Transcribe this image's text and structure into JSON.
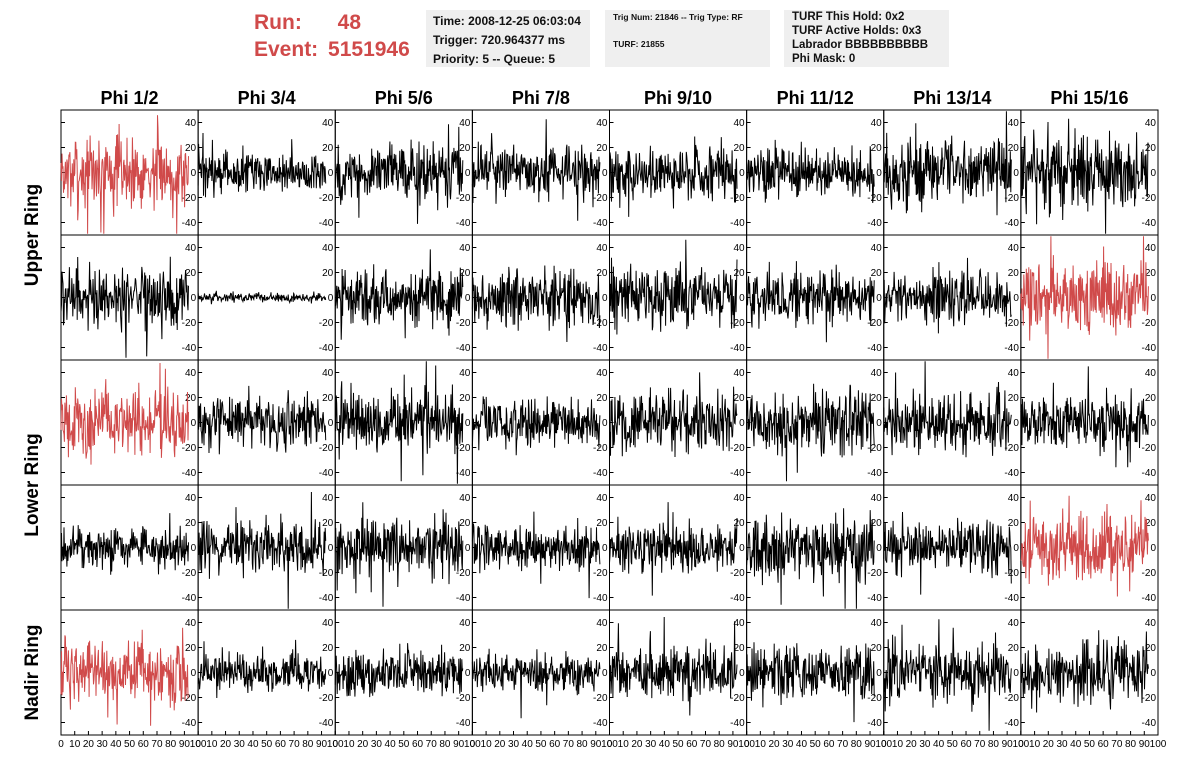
{
  "header": {
    "run_label": "Run:",
    "run_value": "48",
    "event_label": "Event:",
    "event_value": "5151946",
    "time": "Time: 2008-12-25 06:03:04",
    "trigger": "Trigger: 720.964377 ms",
    "priority": "Priority: 5 -- Queue: 5",
    "trig_num": "Trig Num: 21846 -- Trig Type: RF",
    "turf": "TURF: 21855",
    "turf_this_hold": "TURF This Hold: 0x2",
    "turf_active_holds": "TURF Active Holds: 0x3",
    "labrador": "Labrador BBBBBBBBBB",
    "phi_mask": "Phi Mask: 0"
  },
  "colors": {
    "highlight": "#d04a4a",
    "trace": "#000000",
    "info_bg": "#efefef"
  },
  "chart_data": {
    "type": "line",
    "columns": [
      "Phi 1/2",
      "Phi 3/4",
      "Phi 5/6",
      "Phi 7/8",
      "Phi 9/10",
      "Phi 11/12",
      "Phi 13/14",
      "Phi 15/16"
    ],
    "ring_labels": [
      {
        "label": "Upper Ring",
        "rows": [
          0,
          1
        ]
      },
      {
        "label": "Lower Ring",
        "rows": [
          2,
          3
        ]
      },
      {
        "label": "Nadir Ring",
        "rows": [
          4
        ]
      }
    ],
    "xlim": [
      0,
      100
    ],
    "ylim": [
      -50,
      50
    ],
    "x_ticks": [
      0,
      10,
      20,
      30,
      40,
      50,
      60,
      70,
      80,
      90,
      100
    ],
    "y_ticks": [
      -40,
      -20,
      0,
      20,
      40
    ],
    "trace_x_range": [
      0,
      93
    ],
    "panels": [
      [
        {
          "amp": 18,
          "hl": true
        },
        {
          "amp": 10,
          "hl": false
        },
        {
          "amp": 14,
          "hl": false
        },
        {
          "amp": 12,
          "hl": false
        },
        {
          "amp": 14,
          "hl": false
        },
        {
          "amp": 12,
          "hl": false
        },
        {
          "amp": 16,
          "hl": false
        },
        {
          "amp": 18,
          "hl": false
        }
      ],
      [
        {
          "amp": 15,
          "hl": false
        },
        {
          "amp": 2,
          "hl": false
        },
        {
          "amp": 14,
          "hl": false
        },
        {
          "amp": 14,
          "hl": false
        },
        {
          "amp": 14,
          "hl": false
        },
        {
          "amp": 13,
          "hl": false
        },
        {
          "amp": 13,
          "hl": false
        },
        {
          "amp": 17,
          "hl": true
        }
      ],
      [
        {
          "amp": 16,
          "hl": true
        },
        {
          "amp": 13,
          "hl": false
        },
        {
          "amp": 15,
          "hl": false
        },
        {
          "amp": 12,
          "hl": false
        },
        {
          "amp": 15,
          "hl": false
        },
        {
          "amp": 16,
          "hl": false
        },
        {
          "amp": 14,
          "hl": false
        },
        {
          "amp": 14,
          "hl": false
        }
      ],
      [
        {
          "amp": 10,
          "hl": false
        },
        {
          "amp": 13,
          "hl": false
        },
        {
          "amp": 14,
          "hl": false
        },
        {
          "amp": 11,
          "hl": false
        },
        {
          "amp": 12,
          "hl": false
        },
        {
          "amp": 16,
          "hl": false
        },
        {
          "amp": 12,
          "hl": false
        },
        {
          "amp": 17,
          "hl": true
        }
      ],
      [
        {
          "amp": 15,
          "hl": true
        },
        {
          "amp": 9,
          "hl": false
        },
        {
          "amp": 11,
          "hl": false
        },
        {
          "amp": 10,
          "hl": false
        },
        {
          "amp": 13,
          "hl": false
        },
        {
          "amp": 14,
          "hl": false
        },
        {
          "amp": 14,
          "hl": false
        },
        {
          "amp": 14,
          "hl": false
        }
      ]
    ]
  }
}
